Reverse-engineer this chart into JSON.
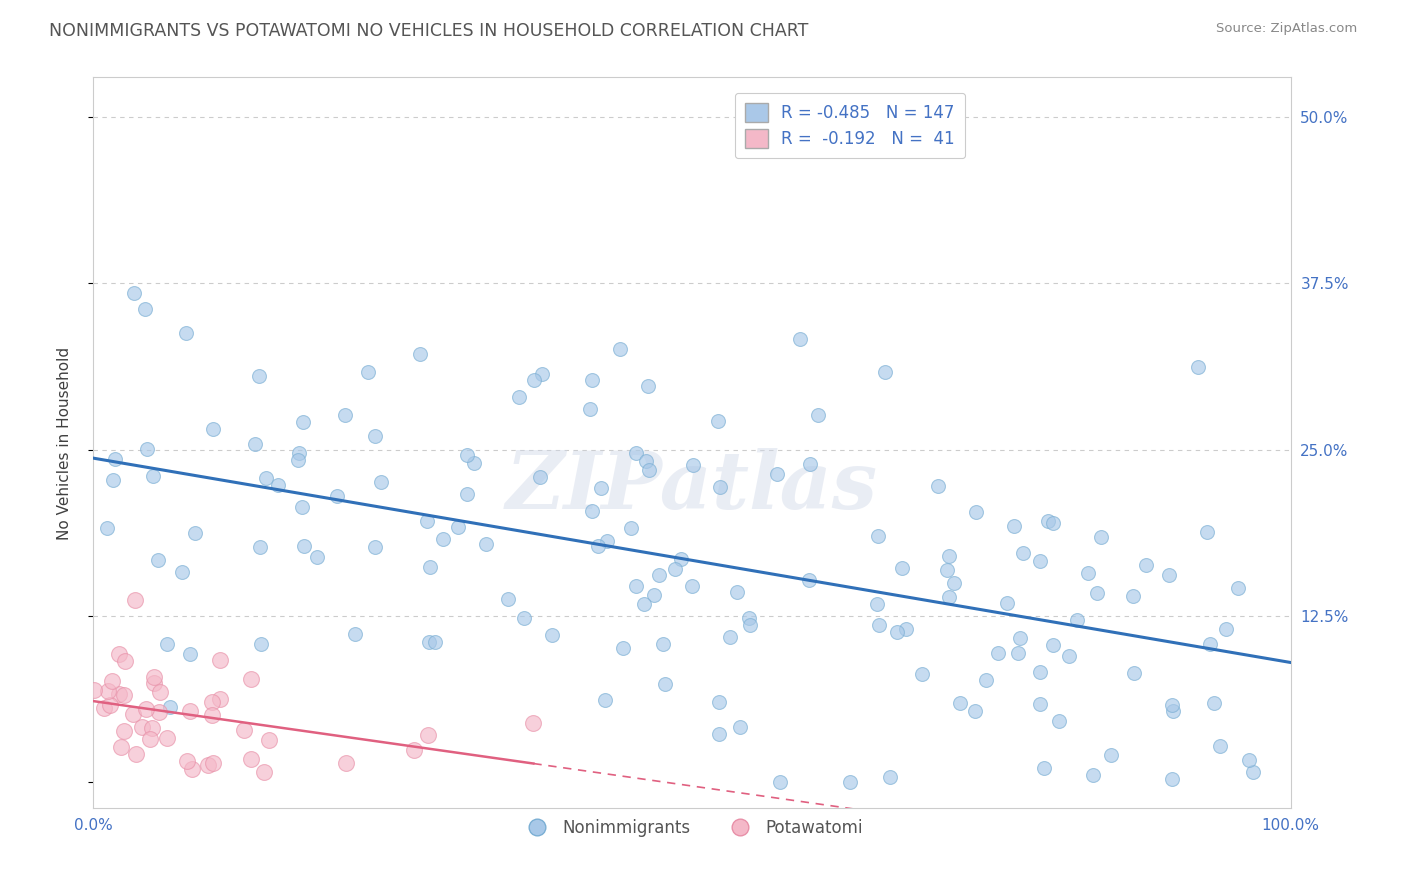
{
  "title": "NONIMMIGRANTS VS POTAWATOMI NO VEHICLES IN HOUSEHOLD CORRELATION CHART",
  "source": "Source: ZipAtlas.com",
  "ylabel": "No Vehicles in Household",
  "xticklabels_positions": [
    0.0,
    1.0
  ],
  "xticklabels": [
    "0.0%",
    "100.0%"
  ],
  "xlim": [
    0.0,
    1.0
  ],
  "ylim": [
    -0.02,
    0.53
  ],
  "yticks": [
    0.0,
    0.125,
    0.25,
    0.375,
    0.5
  ],
  "yticklabels_right": [
    "",
    "12.5%",
    "25.0%",
    "37.5%",
    "50.0%"
  ],
  "legend_bottom": [
    "Nonimmigrants",
    "Potawatomi"
  ],
  "blue_N": 147,
  "pink_N": 41,
  "blue_color": "#a8c8e8",
  "blue_edge": "#7bafd4",
  "pink_color": "#f4b8c8",
  "pink_edge": "#e890a8",
  "line_blue": "#3070b8",
  "line_pink": "#e06080",
  "watermark": "ZIPatlas",
  "bg_color": "#ffffff",
  "grid_color": "#cccccc",
  "title_color": "#555555",
  "source_color": "#888888",
  "tick_label_color": "#4472c4",
  "legend_box_color": "#aac8e8",
  "legend_pink_color": "#f4b8c8",
  "seed": 7
}
